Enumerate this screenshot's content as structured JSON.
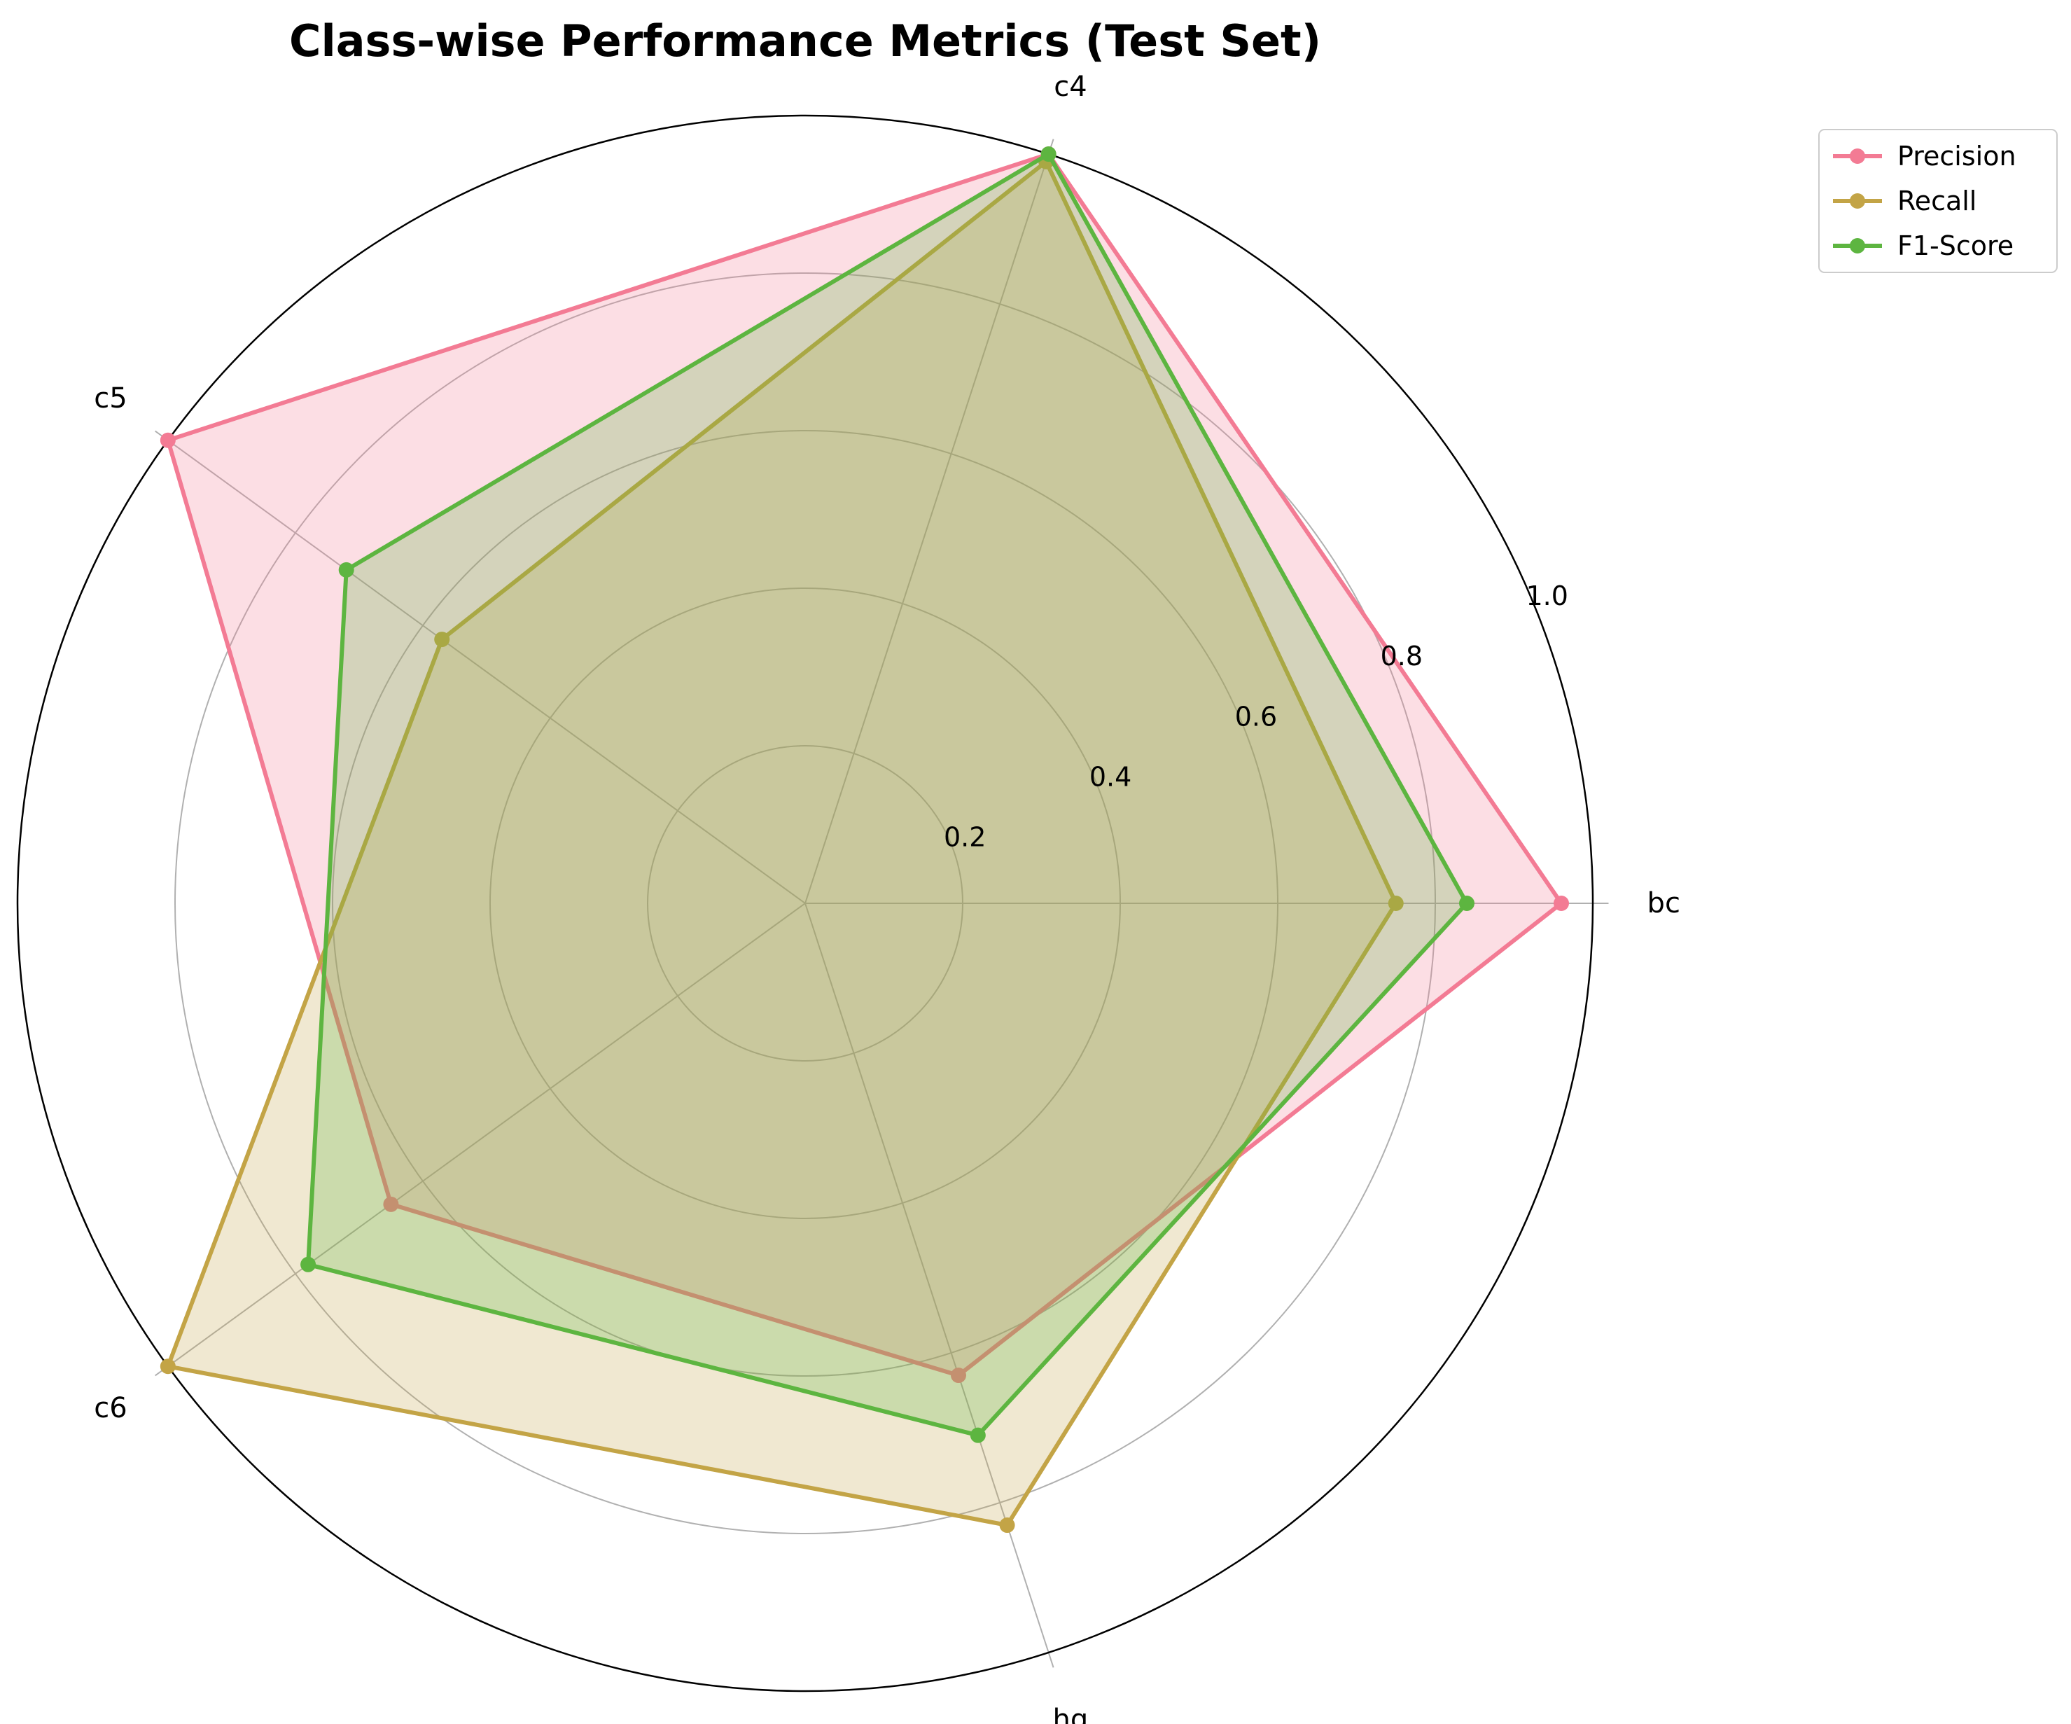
{
  "chart_data": {
    "type": "radar",
    "title": "Class-wise Performance Metrics (Test Set)",
    "categories": [
      "bc",
      "c4",
      "c5",
      "c6",
      "hg"
    ],
    "rlim": [
      0,
      1.0
    ],
    "rticks": [
      0.2,
      0.4,
      0.6,
      0.8,
      1.0
    ],
    "rtick_labels": [
      "0.2",
      "0.4",
      "0.6",
      "0.8",
      "1.0"
    ],
    "grid": true,
    "legend_position": "top-right",
    "series": [
      {
        "name": "Precision",
        "color": "#f37b94",
        "values": [
          0.96,
          1.0,
          1.0,
          0.65,
          0.63
        ]
      },
      {
        "name": "Recall",
        "color": "#c3a446",
        "values": [
          0.75,
          0.99,
          0.57,
          1.0,
          0.83
        ]
      },
      {
        "name": "F1-Score",
        "color": "#5db540",
        "values": [
          0.84,
          1.0,
          0.72,
          0.78,
          0.71
        ]
      }
    ]
  }
}
